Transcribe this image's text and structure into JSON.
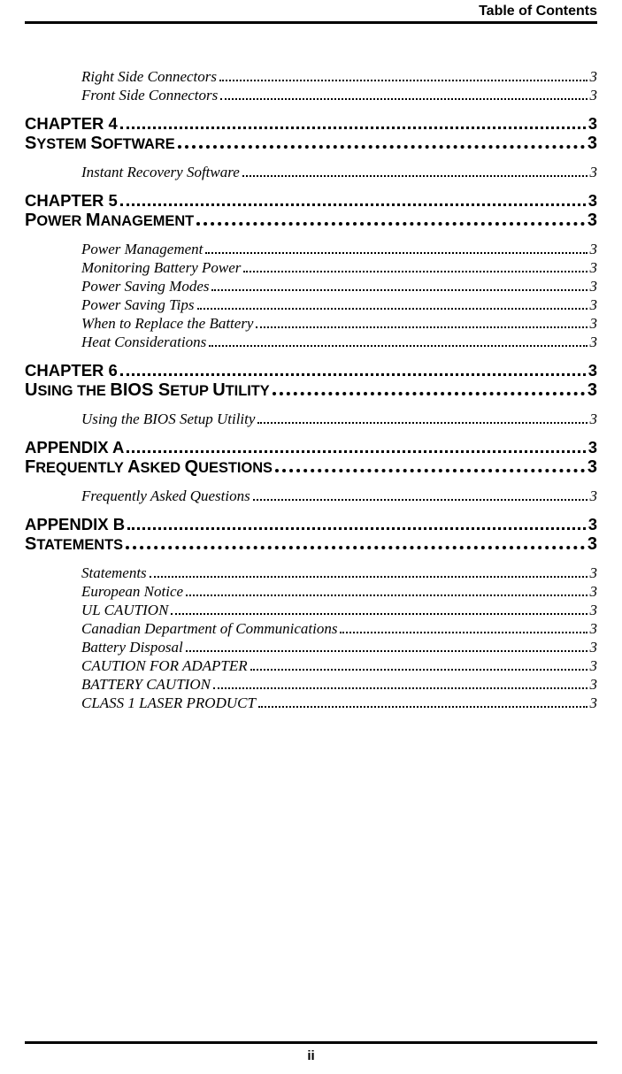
{
  "header": {
    "title": "Table of Contents"
  },
  "footer": {
    "page_num": "ii"
  },
  "entries": {
    "e1": {
      "label": "Right Side Connectors",
      "page": "3"
    },
    "e2": {
      "label": "Front Side Connectors",
      "page": "3"
    },
    "chap4": {
      "label": "CHAPTER 4",
      "page": "3"
    },
    "sys_soft_cap": "S",
    "sys_soft_rest": "YSTEM ",
    "sys_soft_cap2": "S",
    "sys_soft_rest2": "OFTWARE",
    "sys_soft_page": "3",
    "e3": {
      "label": "Instant Recovery Software",
      "page": "3"
    },
    "chap5": {
      "label": "CHAPTER 5",
      "page": "3"
    },
    "pow_cap1": "P",
    "pow_rest1": "OWER ",
    "pow_cap2": "M",
    "pow_rest2": "ANAGEMENT",
    "pow_page": "3",
    "e4": {
      "label": "Power Management",
      "page": "3"
    },
    "e5": {
      "label": "Monitoring Battery Power",
      "page": "3"
    },
    "e6": {
      "label": "Power Saving Modes",
      "page": "3"
    },
    "e7": {
      "label": "Power Saving Tips",
      "page": "3"
    },
    "e8": {
      "label": "When to Replace the Battery",
      "page": "3"
    },
    "e9": {
      "label": "Heat Considerations",
      "page": "3"
    },
    "chap6": {
      "label": "CHAPTER 6",
      "page": "3"
    },
    "bios_cap1": "U",
    "bios_rest1": "SING THE ",
    "bios_cap2": "BIOS S",
    "bios_rest2": "ETUP ",
    "bios_cap3": "U",
    "bios_rest3": "TILITY",
    "bios_page": "3",
    "e10": {
      "label": "Using the BIOS Setup Utility",
      "page": "3"
    },
    "appA": {
      "label": "APPENDIX A",
      "page": "3"
    },
    "faq_cap1": "F",
    "faq_rest1": "REQUENTLY ",
    "faq_cap2": "A",
    "faq_rest2": "SKED ",
    "faq_cap3": "Q",
    "faq_rest3": "UESTIONS",
    "faq_page": "3",
    "e11": {
      "label": "Frequently Asked Questions",
      "page": "3"
    },
    "appB": {
      "label": "APPENDIX B",
      "page": "3"
    },
    "stmt_cap1": "S",
    "stmt_rest1": "TATEMENTS",
    "stmt_page": "3",
    "e12": {
      "label": "Statements",
      "page": "3"
    },
    "e13": {
      "label": "European Notice",
      "page": "3"
    },
    "e14": {
      "label": "UL CAUTION",
      "page": "3"
    },
    "e15": {
      "label": "Canadian Department of Communications",
      "page": "3"
    },
    "e16": {
      "label": "Battery Disposal",
      "page": "3"
    },
    "e17": {
      "label": "CAUTION FOR ADAPTER",
      "page": "3"
    },
    "e18": {
      "label": "BATTERY CAUTION",
      "page": "3"
    },
    "e19": {
      "label": "CLASS 1 LASER PRODUCT",
      "page": "3"
    }
  }
}
